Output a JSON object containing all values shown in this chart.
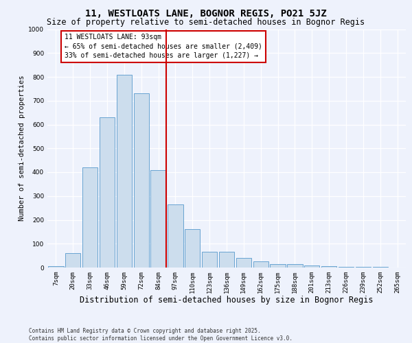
{
  "title": "11, WESTLOATS LANE, BOGNOR REGIS, PO21 5JZ",
  "subtitle": "Size of property relative to semi-detached houses in Bognor Regis",
  "xlabel": "Distribution of semi-detached houses by size in Bognor Regis",
  "ylabel": "Number of semi-detached properties",
  "categories": [
    "7sqm",
    "20sqm",
    "33sqm",
    "46sqm",
    "59sqm",
    "72sqm",
    "84sqm",
    "97sqm",
    "110sqm",
    "123sqm",
    "136sqm",
    "149sqm",
    "162sqm",
    "175sqm",
    "188sqm",
    "201sqm",
    "213sqm",
    "226sqm",
    "239sqm",
    "252sqm",
    "265sqm"
  ],
  "values": [
    5,
    60,
    420,
    630,
    810,
    730,
    410,
    265,
    160,
    65,
    65,
    40,
    25,
    15,
    15,
    8,
    5,
    2,
    2,
    2,
    0
  ],
  "bar_color": "#ccdded",
  "bar_edge_color": "#5599cc",
  "vline_idx": 6,
  "vline_color": "#cc0000",
  "annotation_text": "11 WESTLOATS LANE: 93sqm\n← 65% of semi-detached houses are smaller (2,409)\n33% of semi-detached houses are larger (1,227) →",
  "annotation_box_facecolor": "#ffffff",
  "annotation_box_edgecolor": "#cc0000",
  "ylim": [
    0,
    1000
  ],
  "yticks": [
    0,
    100,
    200,
    300,
    400,
    500,
    600,
    700,
    800,
    900,
    1000
  ],
  "background_color": "#eef2fc",
  "footer_text": "Contains HM Land Registry data © Crown copyright and database right 2025.\nContains public sector information licensed under the Open Government Licence v3.0.",
  "title_fontsize": 10,
  "subtitle_fontsize": 8.5,
  "xlabel_fontsize": 8.5,
  "ylabel_fontsize": 7.5,
  "tick_fontsize": 6.5,
  "annotation_fontsize": 7,
  "footer_fontsize": 5.5
}
